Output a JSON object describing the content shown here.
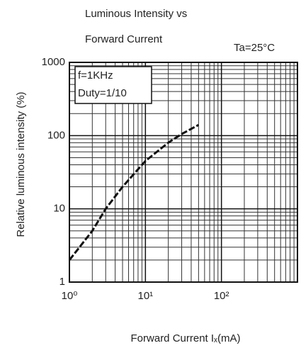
{
  "chart_data": {
    "type": "line",
    "title": [
      "Luminous Intensity vs",
      "Forward Current"
    ],
    "condition": "Ta=25°C",
    "annotation": [
      "f=1KHz",
      "Duty=1/10"
    ],
    "xlabel": "Forward Current  Iₓ(mA)",
    "ylabel": "Relative luminous intensity  (%)",
    "x": [
      1,
      2,
      3,
      5,
      10,
      20,
      30,
      50
    ],
    "series": [
      {
        "color": "#111111",
        "values": [
          2,
          5,
          10,
          20,
          45,
          80,
          105,
          140
        ]
      }
    ],
    "xlim": [
      1,
      1000
    ],
    "ylim": [
      1,
      1000
    ],
    "xticks": [
      {
        "value": 1,
        "label": "10⁰"
      },
      {
        "value": 10,
        "label": "10¹"
      },
      {
        "value": 100,
        "label": "10²"
      }
    ],
    "yticks": [
      1,
      10,
      100,
      1000
    ],
    "log_x": true,
    "log_y": true,
    "grid": true,
    "minor_grid": true,
    "line_style": "dashed"
  }
}
